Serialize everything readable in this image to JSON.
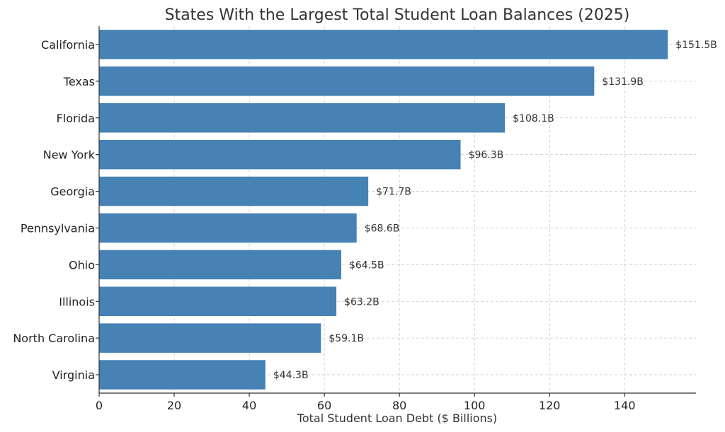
{
  "chart_data": {
    "type": "bar",
    "orientation": "horizontal",
    "title": "States With the Largest Total Student Loan Balances (2025)",
    "xlabel": "Total Student Loan Debt ($ Billions)",
    "ylabel": "",
    "xlim": [
      0,
      159
    ],
    "xticks": [
      0,
      20,
      40,
      60,
      80,
      100,
      120,
      140
    ],
    "categories": [
      "California",
      "Texas",
      "Florida",
      "New York",
      "Georgia",
      "Pennsylvania",
      "Ohio",
      "Illinois",
      "North Carolina",
      "Virginia"
    ],
    "values": [
      151.5,
      131.9,
      108.1,
      96.3,
      71.7,
      68.6,
      64.5,
      63.2,
      59.1,
      44.3
    ],
    "data_labels": [
      "$151.5B",
      "$131.9B",
      "$108.1B",
      "$96.3B",
      "$71.7B",
      "$68.6B",
      "$64.5B",
      "$63.2B",
      "$59.1B",
      "$44.3B"
    ],
    "grid": true,
    "bar_color": "#4682b4"
  }
}
